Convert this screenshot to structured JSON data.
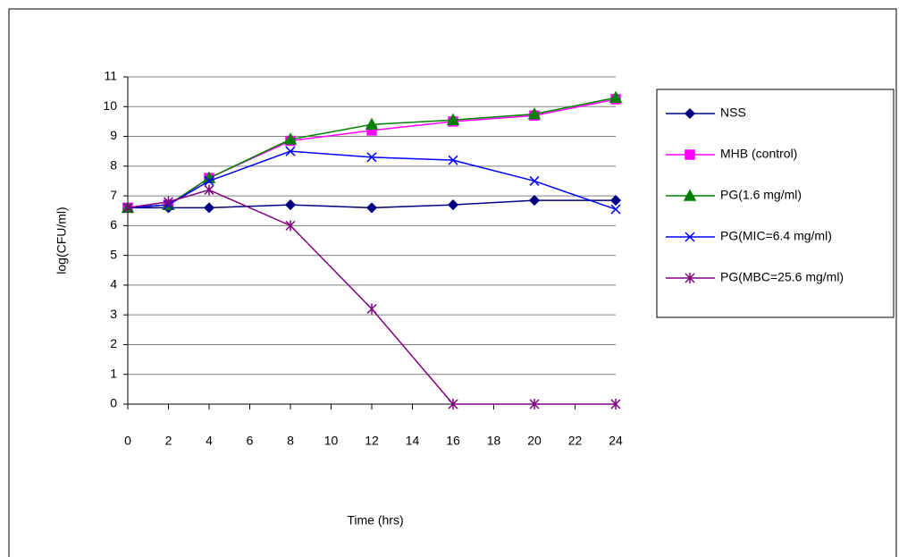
{
  "chart_data": {
    "type": "line",
    "xlabel": "Time (hrs)",
    "ylabel": "log(CFU/ml)",
    "x": [
      0,
      2,
      4,
      8,
      12,
      16,
      20,
      24
    ],
    "xlim": [
      0,
      24
    ],
    "xticks": [
      0,
      2,
      4,
      6,
      8,
      10,
      12,
      14,
      16,
      18,
      20,
      22,
      24
    ],
    "ylim": [
      0,
      11
    ],
    "yticks": [
      0,
      1,
      2,
      3,
      4,
      5,
      6,
      7,
      8,
      9,
      10,
      11
    ],
    "grid": true,
    "legend": "right",
    "series": [
      {
        "name": "NSS",
        "color": "#000080",
        "marker": "diamond",
        "values": [
          6.6,
          6.6,
          6.6,
          6.7,
          6.6,
          6.7,
          6.85,
          6.85
        ]
      },
      {
        "name": "MHB (control)",
        "color": "#ff00ff",
        "marker": "square",
        "values": [
          6.6,
          6.7,
          7.6,
          8.85,
          9.2,
          9.5,
          9.7,
          10.25
        ]
      },
      {
        "name": "PG(1.6 mg/ml)",
        "color": "#008000",
        "marker": "triangle",
        "values": [
          6.6,
          6.7,
          7.6,
          8.9,
          9.4,
          9.55,
          9.75,
          10.3
        ]
      },
      {
        "name": "PG(MIC=6.4 mg/ml)",
        "color": "#0000ff",
        "marker": "x",
        "values": [
          6.6,
          6.7,
          7.5,
          8.5,
          8.3,
          8.2,
          7.5,
          6.55
        ]
      },
      {
        "name": "PG(MBC=25.6 mg/ml)",
        "color": "#800080",
        "marker": "star",
        "values": [
          6.6,
          6.8,
          7.2,
          6.0,
          3.2,
          0,
          0,
          0
        ]
      }
    ]
  }
}
